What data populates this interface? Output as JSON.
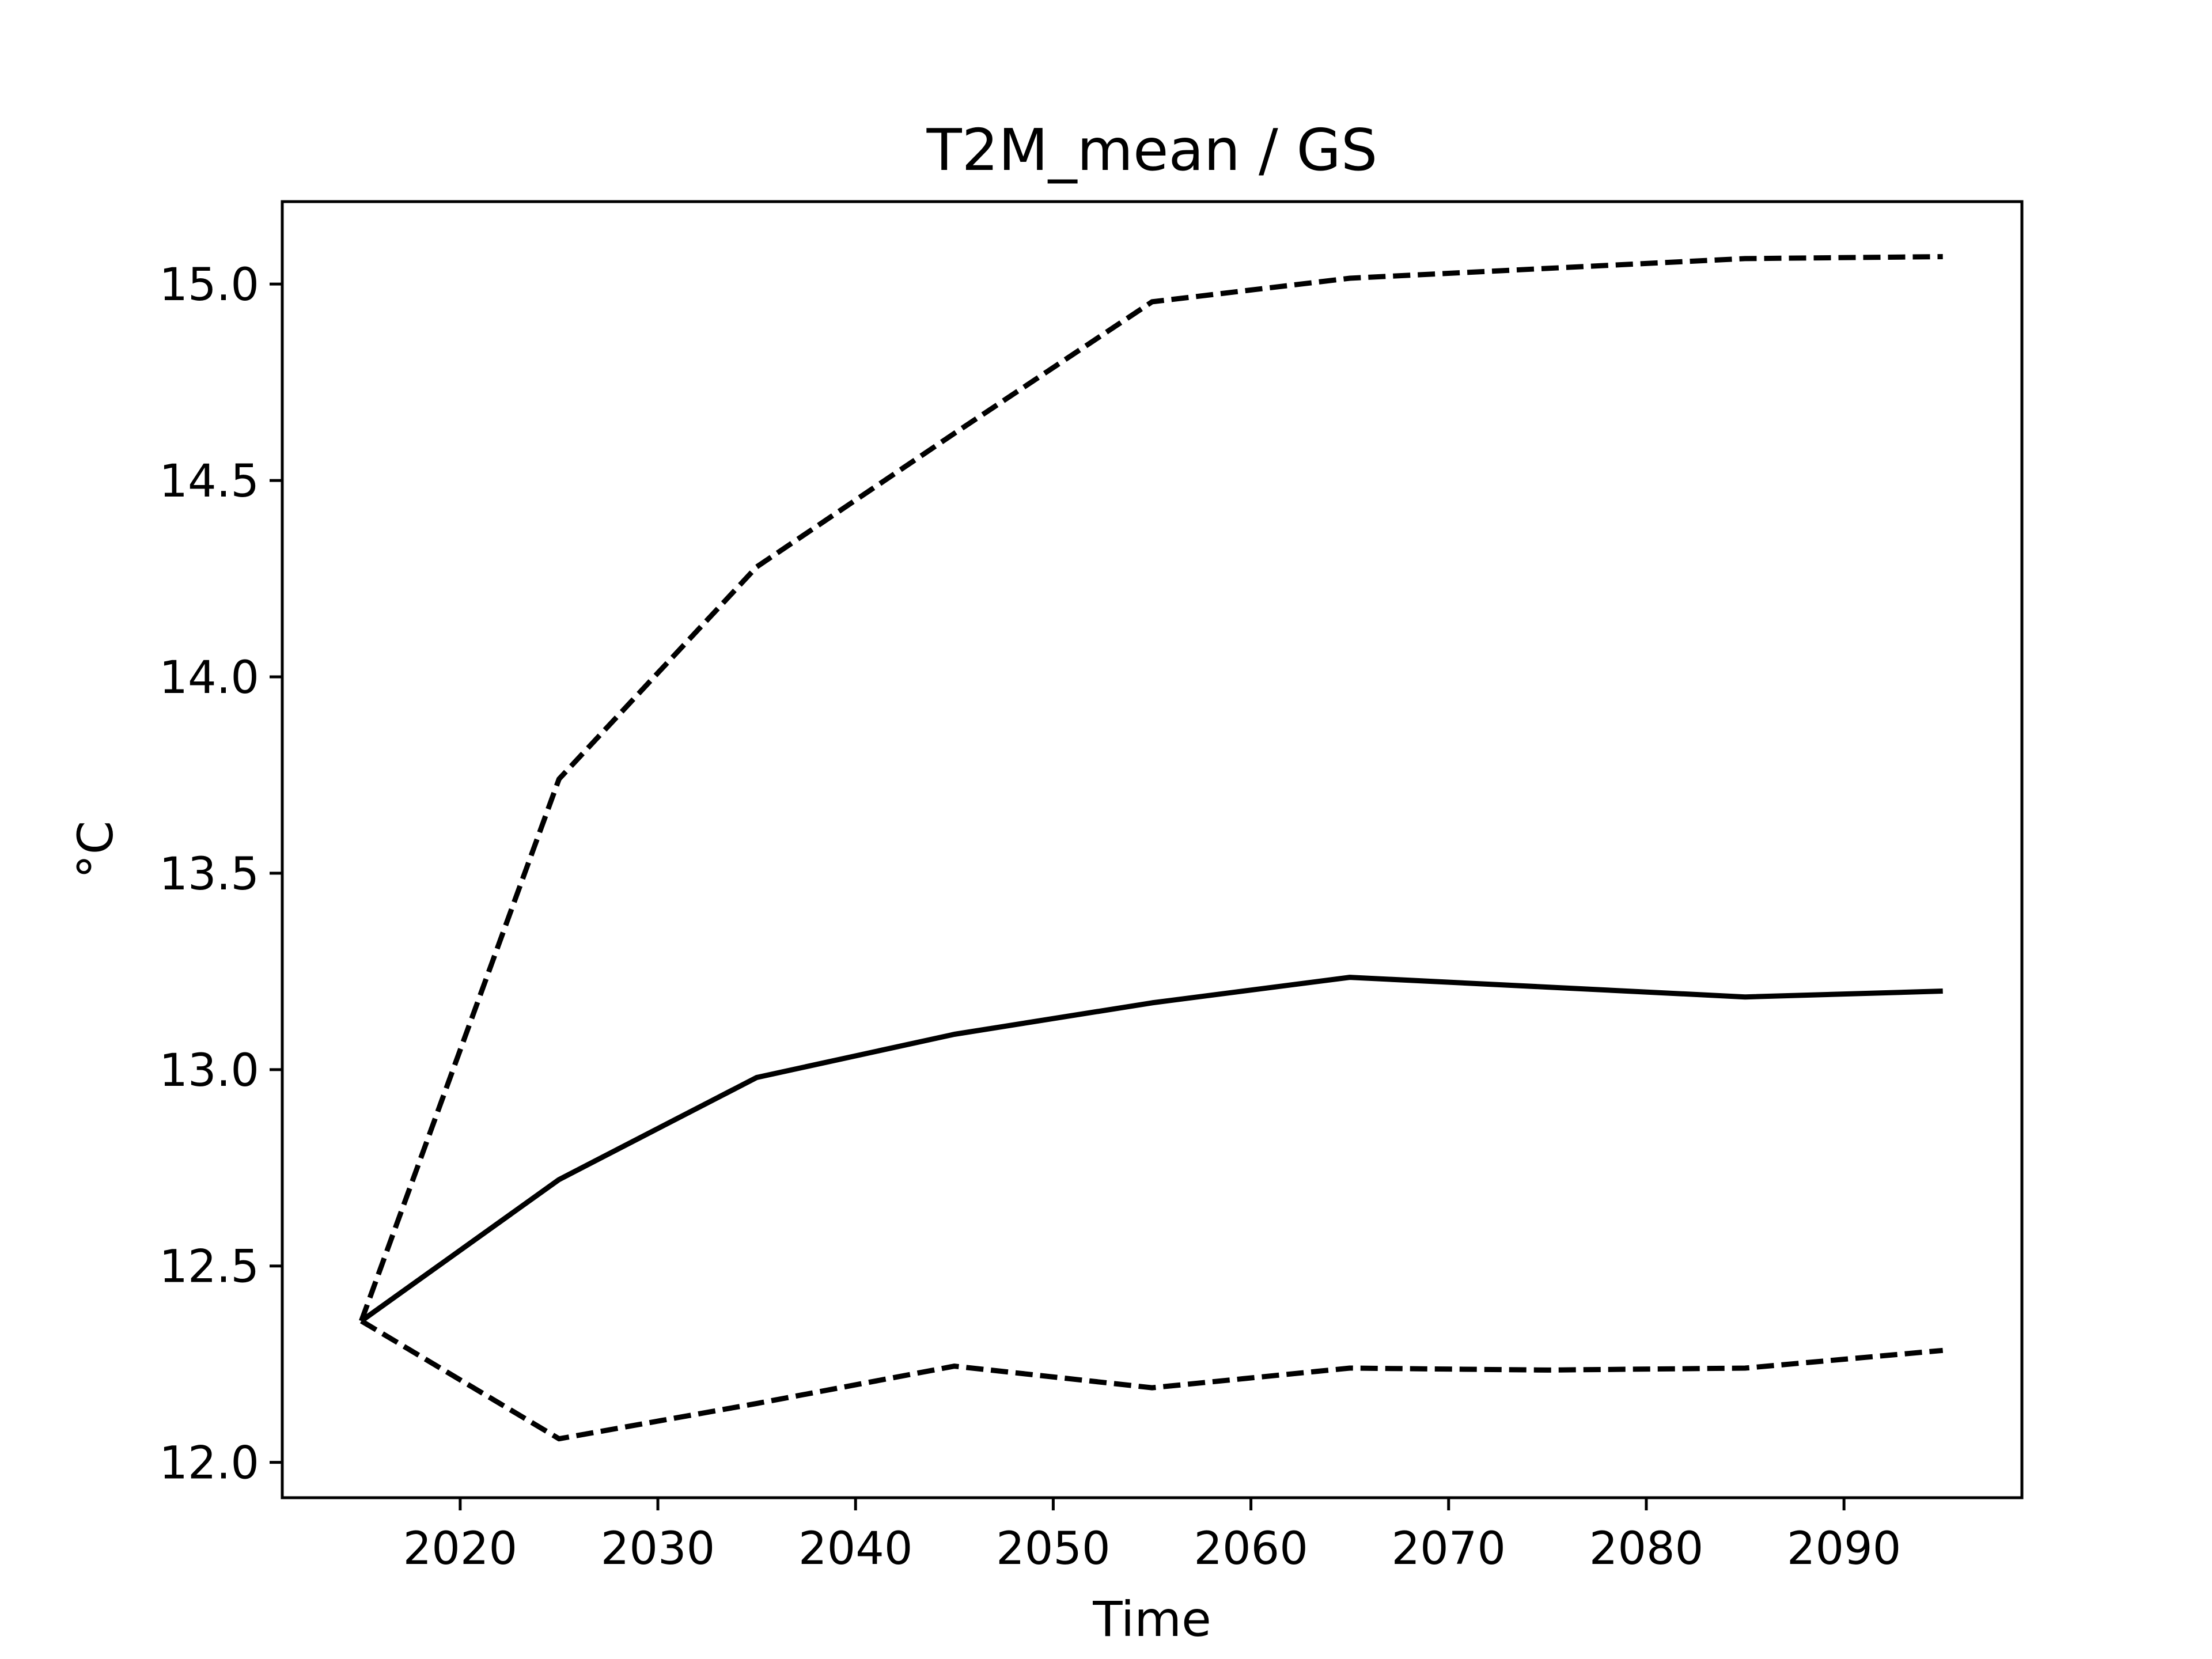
{
  "chart_data": {
    "type": "line",
    "title": "T2M_mean / GS",
    "xlabel": "Time",
    "ylabel": "°C",
    "x": [
      2015,
      2025,
      2035,
      2045,
      2055,
      2065,
      2075,
      2085,
      2095
    ],
    "series": [
      {
        "style": "solid",
        "color": "#000000",
        "values": [
          12.36,
          12.72,
          12.98,
          13.09,
          13.17,
          13.235,
          13.21,
          13.185,
          13.2
        ]
      },
      {
        "style": "dashed",
        "color": "#000000",
        "values": [
          12.36,
          13.74,
          14.28,
          14.62,
          14.955,
          15.015,
          15.04,
          15.065,
          15.07
        ]
      },
      {
        "style": "dashed",
        "color": "#000000",
        "values": [
          12.36,
          12.06,
          12.15,
          12.245,
          12.19,
          12.24,
          12.235,
          12.24,
          12.285
        ]
      }
    ],
    "xlim": [
      2011,
      2099
    ],
    "ylim": [
      11.91,
      15.21
    ],
    "xticks": [
      2020,
      2030,
      2040,
      2050,
      2060,
      2070,
      2080,
      2090
    ],
    "xtick_labels": [
      "2020",
      "2030",
      "2040",
      "2050",
      "2060",
      "2070",
      "2080",
      "2090"
    ],
    "yticks": [
      12.0,
      12.5,
      13.0,
      13.5,
      14.0,
      14.5,
      15.0
    ],
    "ytick_labels": [
      "12.0",
      "12.5",
      "13.0",
      "13.5",
      "14.0",
      "14.5",
      "15.0"
    ],
    "grid": false,
    "legend": "none"
  }
}
